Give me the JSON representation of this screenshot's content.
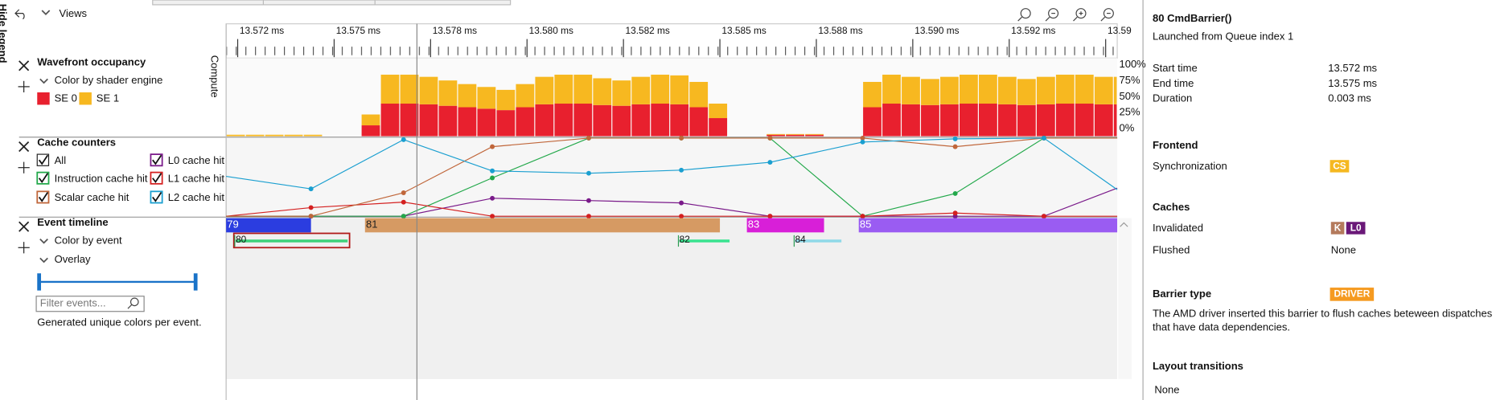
{
  "toolbar": {
    "views": "Views",
    "hide_legend": "Hide legend"
  },
  "chart_data": [
    {
      "type": "bar",
      "stacked": true,
      "title": "Wavefront occupancy",
      "subtitle": "Color by shader engine",
      "ylabel": "Compute",
      "x": [
        13.5722,
        13.5727,
        13.5732,
        13.5737,
        13.5742,
        13.5747,
        13.5752,
        13.5757,
        13.5762,
        13.5767,
        13.5772,
        13.5777,
        13.5782,
        13.5787,
        13.5792,
        13.5797,
        13.5802,
        13.5807,
        13.5812,
        13.5817,
        13.5822,
        13.5827,
        13.5832,
        13.5837,
        13.5842,
        13.5847,
        13.5852,
        13.5857,
        13.5862,
        13.5867,
        13.5872,
        13.5877,
        13.5882,
        13.5887,
        13.5892,
        13.5897,
        13.5902,
        13.5907,
        13.5912,
        13.5917,
        13.5922,
        13.5927,
        13.5932,
        13.5937,
        13.5942,
        13.5947,
        13.5952
      ],
      "series": [
        {
          "name": "SE 0",
          "color": "#e8202e",
          "values": [
            0,
            0,
            0,
            0,
            0,
            0,
            0,
            15,
            45,
            45,
            44,
            42,
            40,
            38,
            36,
            40,
            44,
            45,
            45,
            43,
            42,
            44,
            45,
            44,
            40,
            25,
            0,
            0,
            2,
            2,
            2,
            0,
            0,
            40,
            45,
            44,
            43,
            44,
            45,
            45,
            44,
            43,
            44,
            45,
            45,
            44,
            44
          ]
        },
        {
          "name": "SE 1",
          "color": "#f7b820",
          "values": [
            2,
            2,
            2,
            2,
            2,
            0,
            0,
            15,
            40,
            40,
            38,
            35,
            32,
            30,
            28,
            32,
            38,
            40,
            40,
            37,
            35,
            38,
            40,
            40,
            35,
            20,
            0,
            0,
            1,
            1,
            1,
            0,
            0,
            35,
            40,
            38,
            36,
            38,
            40,
            40,
            38,
            36,
            38,
            40,
            40,
            38,
            38
          ]
        }
      ],
      "xlim": [
        13.5722,
        13.5953
      ],
      "xticks": [
        {
          "value": 13.5725,
          "label": "13.572 ms"
        },
        {
          "value": 13.575,
          "label": "13.575 ms"
        },
        {
          "value": 13.5775,
          "label": "13.578 ms"
        },
        {
          "value": 13.58,
          "label": "13.580 ms"
        },
        {
          "value": 13.5825,
          "label": "13.582 ms"
        },
        {
          "value": 13.585,
          "label": "13.585 ms"
        },
        {
          "value": 13.5875,
          "label": "13.588 ms"
        },
        {
          "value": 13.59,
          "label": "13.590 ms"
        },
        {
          "value": 13.5925,
          "label": "13.592 ms"
        },
        {
          "value": 13.595,
          "label": "13.59"
        }
      ],
      "ylim": [
        0,
        100
      ],
      "yticks": [
        {
          "value": 100,
          "label": "100%"
        },
        {
          "value": 75,
          "label": "75%"
        },
        {
          "value": 50,
          "label": "50%"
        },
        {
          "value": 25,
          "label": "25%"
        },
        {
          "value": 0,
          "label": "0%"
        }
      ]
    },
    {
      "type": "line",
      "title": "Cache counters",
      "toggle_all": "All",
      "x": [
        13.5722,
        13.5744,
        13.5768,
        13.5791,
        13.5816,
        13.584,
        13.5863,
        13.5887,
        13.5911,
        13.5934,
        13.5953
      ],
      "xlim": [
        13.5722,
        13.5953
      ],
      "ylim": [
        0,
        100
      ],
      "series": [
        {
          "name": "L0 cache hit",
          "color": "#7a1a8a",
          "values": [
            0,
            0,
            0,
            23,
            20,
            17,
            0,
            0,
            0,
            0,
            36
          ]
        },
        {
          "name": "Instruction cache hit",
          "color": "#22a84a",
          "values": [
            0,
            0,
            0,
            49,
            100,
            100,
            100,
            0,
            29,
            100,
            100
          ]
        },
        {
          "name": "L1 cache hit",
          "color": "#d42020",
          "values": [
            0,
            11,
            18,
            0,
            0,
            0,
            0,
            0,
            4,
            0,
            0
          ]
        },
        {
          "name": "Scalar cache hit",
          "color": "#c0663a",
          "values": [
            0,
            0,
            30,
            89,
            100,
            100,
            100,
            100,
            89,
            100,
            100
          ]
        },
        {
          "name": "L2 cache hit",
          "color": "#1a9fd0",
          "values": [
            51,
            35,
            98,
            58,
            55,
            59,
            69,
            95,
            99,
            100,
            34
          ]
        }
      ]
    },
    {
      "type": "timeline",
      "title": "Event timeline",
      "subtitle": "Color by event",
      "overlay": "Overlay",
      "filter_placeholder": "Filter events...",
      "note": "Generated unique colors per event.",
      "xlim": [
        13.5722,
        13.5953
      ],
      "events": [
        {
          "label": "79",
          "start": 13.5722,
          "end": 13.5744,
          "lane": 0,
          "color": "#2b3de0"
        },
        {
          "label": "81",
          "start": 13.5758,
          "end": 13.585,
          "lane": 0,
          "color": "#d69a63"
        },
        {
          "label": "83",
          "start": 13.5857,
          "end": 13.5877,
          "lane": 0,
          "color": "#d81fd8"
        },
        {
          "label": "85",
          "start": 13.5886,
          "end": 13.5953,
          "lane": 0,
          "color": "#9a5cf2"
        },
        {
          "label": "80",
          "start": 13.5724,
          "end": 13.5754,
          "lane": 1,
          "color": "#3dd17a",
          "selected": true
        },
        {
          "label": "82",
          "start": 13.5839,
          "end": 13.5853,
          "lane": 1,
          "color": "#39e38f"
        },
        {
          "label": "84",
          "start": 13.5869,
          "end": 13.5882,
          "lane": 1,
          "color": "#8fd9e8"
        }
      ]
    }
  ],
  "details": {
    "title": "80 CmdBarrier()",
    "subtitle": "Launched from Queue index 1",
    "timing": [
      {
        "label": "Start time",
        "value": "13.572 ms"
      },
      {
        "label": "End time",
        "value": "13.575 ms"
      },
      {
        "label": "Duration",
        "value": "0.003 ms"
      }
    ],
    "frontend": {
      "heading": "Frontend",
      "label": "Synchronization",
      "badge": "CS",
      "color": "#f5b820"
    },
    "caches": {
      "heading": "Caches",
      "invalidated_label": "Invalidated",
      "invalidated": [
        {
          "text": "K",
          "color": "#b47a5c"
        },
        {
          "text": "L0",
          "color": "#6a1878"
        }
      ],
      "flushed_label": "Flushed",
      "flushed": "None"
    },
    "barrier": {
      "heading": "Barrier type",
      "badge": "DRIVER",
      "color": "#f59a20",
      "description": [
        "The AMD driver inserted this barrier to flush caches beteween dispatches",
        "that have data dependencies."
      ]
    },
    "layout": {
      "heading": "Layout transitions",
      "value": "None"
    }
  }
}
